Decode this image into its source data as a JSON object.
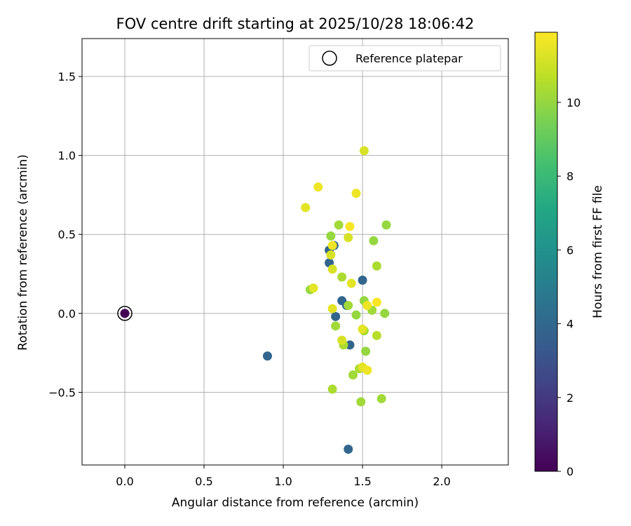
{
  "chart_data": {
    "type": "scatter",
    "title": "FOV centre drift starting at 2025/10/28 18:06:42",
    "xlabel": "Angular distance from reference (arcmin)",
    "ylabel": "Rotation from reference (arcmin)",
    "xlim": [
      -0.27,
      2.42
    ],
    "ylim": [
      -0.96,
      1.74
    ],
    "xticks": [
      0.0,
      0.5,
      1.0,
      1.5,
      2.0
    ],
    "xtick_labels": [
      "0.0",
      "0.5",
      "1.0",
      "1.5",
      "2.0"
    ],
    "yticks": [
      -0.5,
      0.0,
      0.5,
      1.0,
      1.5
    ],
    "ytick_labels": [
      "−0.5",
      "0.0",
      "0.5",
      "1.0",
      "1.5"
    ],
    "grid": true,
    "legend": {
      "position": "top-right",
      "entries": [
        "Reference platepar"
      ]
    },
    "reference_point": {
      "x": 0.0,
      "y": 0.0,
      "hours": 0.0
    },
    "colorbar": {
      "label": "Hours from first FF file",
      "range": [
        0,
        11.9
      ],
      "ticks": [
        0,
        2,
        4,
        6,
        8,
        10
      ],
      "tick_labels": [
        "0",
        "2",
        "4",
        "6",
        "8",
        "10"
      ],
      "colormap": "viridis"
    },
    "points": [
      {
        "x": 0.9,
        "y": -0.27,
        "hours": 3.9
      },
      {
        "x": 1.29,
        "y": 0.4,
        "hours": 3.9
      },
      {
        "x": 1.29,
        "y": 0.32,
        "hours": 3.9
      },
      {
        "x": 1.32,
        "y": 0.43,
        "hours": 3.9
      },
      {
        "x": 1.33,
        "y": -0.02,
        "hours": 3.9
      },
      {
        "x": 1.37,
        "y": 0.08,
        "hours": 3.9
      },
      {
        "x": 1.4,
        "y": 0.05,
        "hours": 3.9
      },
      {
        "x": 1.42,
        "y": -0.2,
        "hours": 3.9
      },
      {
        "x": 1.5,
        "y": 0.21,
        "hours": 3.9
      },
      {
        "x": 1.41,
        "y": -0.86,
        "hours": 3.9
      },
      {
        "x": 1.17,
        "y": 0.15,
        "hours": 10.0
      },
      {
        "x": 1.3,
        "y": 0.49,
        "hours": 10.0
      },
      {
        "x": 1.35,
        "y": 0.56,
        "hours": 10.2
      },
      {
        "x": 1.33,
        "y": -0.08,
        "hours": 10.2
      },
      {
        "x": 1.37,
        "y": 0.23,
        "hours": 10.4
      },
      {
        "x": 1.38,
        "y": -0.2,
        "hours": 10.4
      },
      {
        "x": 1.41,
        "y": 0.05,
        "hours": 10.2
      },
      {
        "x": 1.44,
        "y": -0.39,
        "hours": 10.2
      },
      {
        "x": 1.46,
        "y": -0.01,
        "hours": 10.0
      },
      {
        "x": 1.48,
        "y": -0.35,
        "hours": 10.4
      },
      {
        "x": 1.49,
        "y": -0.56,
        "hours": 10.2
      },
      {
        "x": 1.51,
        "y": 0.08,
        "hours": 10.0
      },
      {
        "x": 1.51,
        "y": -0.11,
        "hours": 10.2
      },
      {
        "x": 1.52,
        "y": -0.24,
        "hours": 10.0
      },
      {
        "x": 1.56,
        "y": 0.02,
        "hours": 10.2
      },
      {
        "x": 1.57,
        "y": 0.46,
        "hours": 10.0
      },
      {
        "x": 1.59,
        "y": 0.3,
        "hours": 10.4
      },
      {
        "x": 1.59,
        "y": -0.14,
        "hours": 10.6
      },
      {
        "x": 1.62,
        "y": -0.54,
        "hours": 10.2
      },
      {
        "x": 1.64,
        "y": 0.0,
        "hours": 10.0
      },
      {
        "x": 1.65,
        "y": 0.56,
        "hours": 10.0
      },
      {
        "x": 1.31,
        "y": -0.48,
        "hours": 10.4
      },
      {
        "x": 1.14,
        "y": 0.67,
        "hours": 11.4
      },
      {
        "x": 1.19,
        "y": 0.16,
        "hours": 11.4
      },
      {
        "x": 1.22,
        "y": 0.8,
        "hours": 11.6
      },
      {
        "x": 1.3,
        "y": 0.37,
        "hours": 11.2
      },
      {
        "x": 1.31,
        "y": 0.28,
        "hours": 11.2
      },
      {
        "x": 1.31,
        "y": 0.03,
        "hours": 11.4
      },
      {
        "x": 1.31,
        "y": 0.43,
        "hours": 11.6
      },
      {
        "x": 1.37,
        "y": -0.17,
        "hours": 11.2
      },
      {
        "x": 1.41,
        "y": 0.48,
        "hours": 11.2
      },
      {
        "x": 1.42,
        "y": 0.55,
        "hours": 11.8
      },
      {
        "x": 1.43,
        "y": 0.19,
        "hours": 11.4
      },
      {
        "x": 1.46,
        "y": 0.76,
        "hours": 11.6
      },
      {
        "x": 1.5,
        "y": -0.34,
        "hours": 11.4
      },
      {
        "x": 1.5,
        "y": -0.1,
        "hours": 11.4
      },
      {
        "x": 1.51,
        "y": 1.03,
        "hours": 11.2
      },
      {
        "x": 1.53,
        "y": 0.05,
        "hours": 11.6
      },
      {
        "x": 1.53,
        "y": -0.36,
        "hours": 11.6
      },
      {
        "x": 1.59,
        "y": 0.07,
        "hours": 11.8
      }
    ]
  }
}
